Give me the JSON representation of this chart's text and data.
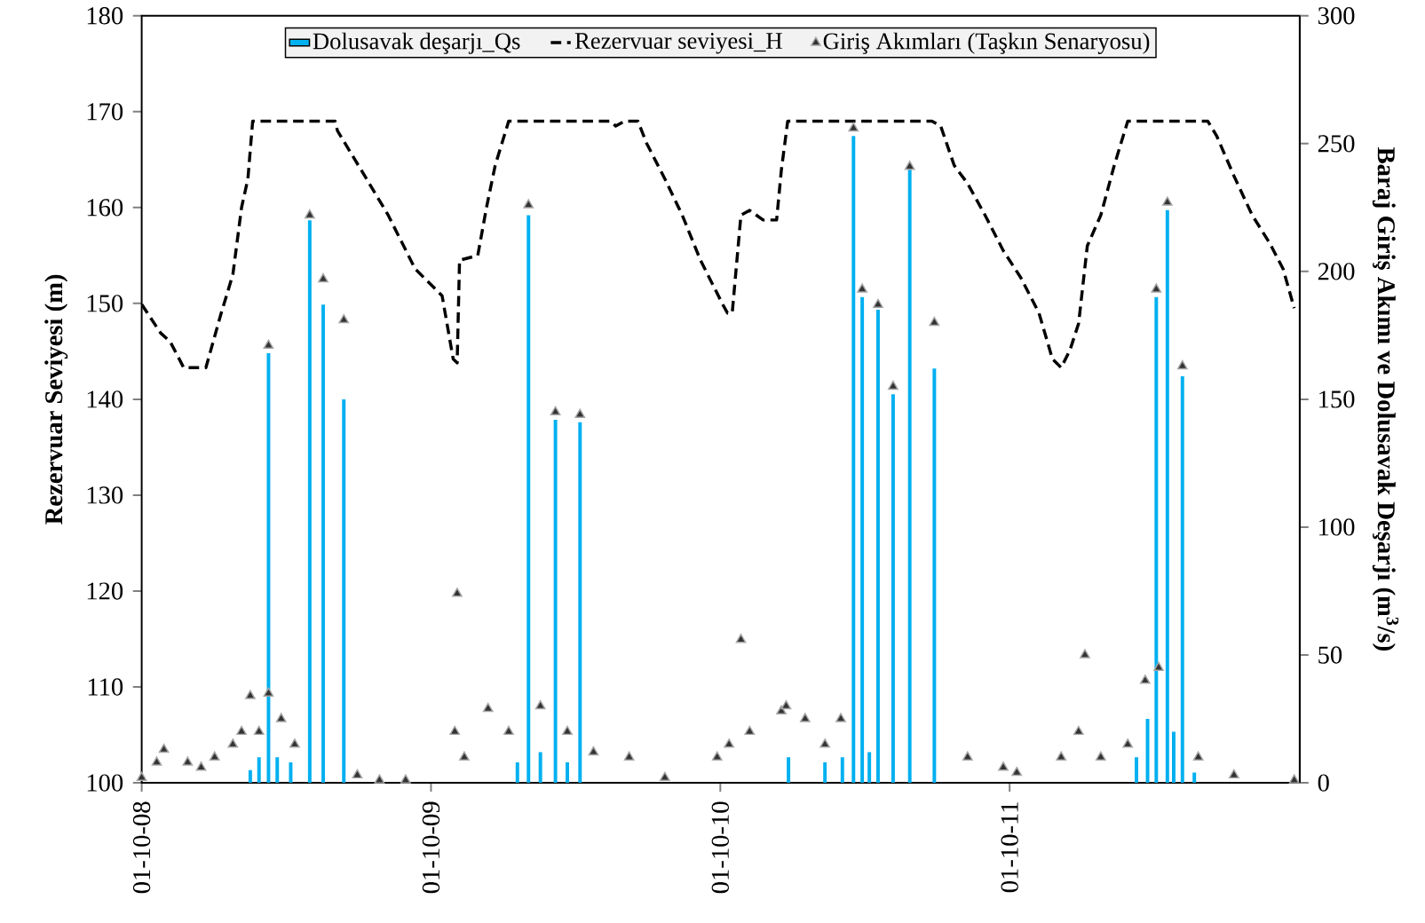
{
  "chart_data": {
    "type": "line",
    "ylabel": "Rezervuar Seviyesi (m)",
    "y2label": "Baraj Giriş Akımı ve Dolusavak Deşarjı (m$^{3}$/s)",
    "xlim": [
      "2008-10-01",
      "2012-10-01"
    ],
    "xticks": [
      {
        "value": "2008-10-01",
        "label": "01-10-08"
      },
      {
        "value": "2009-10-01",
        "label": "01-10-09"
      },
      {
        "value": "2010-10-01",
        "label": "01-10-10"
      },
      {
        "value": "2011-10-01",
        "label": "01-10-11"
      }
    ],
    "ylim": [
      100,
      180
    ],
    "yticks": [
      100,
      110,
      120,
      130,
      140,
      150,
      160,
      170,
      180
    ],
    "y2lim": [
      0,
      300
    ],
    "y2ticks": [
      0,
      50,
      100,
      150,
      200,
      250,
      300
    ],
    "grid": false,
    "legend": "top",
    "series": [
      {
        "name": "Dolusavak deşarjı_Qs",
        "type": "bar",
        "axis": "y2",
        "color": "#00b0f0",
        "x": [
          "2009-02-15",
          "2009-02-26",
          "2009-03-10",
          "2009-03-21",
          "2009-04-07",
          "2009-05-01",
          "2009-05-18",
          "2009-06-13",
          "2010-01-18",
          "2010-02-01",
          "2010-02-16",
          "2010-03-07",
          "2010-03-22",
          "2010-04-07",
          "2010-12-26",
          "2011-02-10",
          "2011-03-04",
          "2011-03-18",
          "2011-03-29",
          "2011-04-07",
          "2011-04-18",
          "2011-05-07",
          "2011-05-28",
          "2011-06-28",
          "2012-03-09",
          "2012-03-23",
          "2012-04-03",
          "2012-04-17",
          "2012-04-25",
          "2012-05-06",
          "2012-05-21"
        ],
        "values": [
          5,
          10,
          168,
          10,
          8,
          220,
          187,
          150,
          8,
          222,
          12,
          142,
          8,
          141,
          10,
          8,
          10,
          253,
          190,
          12,
          185,
          152,
          240,
          162,
          10,
          25,
          190,
          224,
          20,
          159,
          4
        ]
      },
      {
        "name": "Rezervuar seviyesi_H",
        "axis": "y",
        "color": "#000000",
        "line_style": "dashed",
        "x": [
          "2008-10-01",
          "2008-10-25",
          "2008-11-06",
          "2008-11-23",
          "2008-12-21",
          "2009-01-09",
          "2009-01-24",
          "2009-02-04",
          "2009-02-12",
          "2009-02-18",
          "2009-06-02",
          "2009-06-05",
          "2009-07-05",
          "2009-08-08",
          "2009-09-11",
          "2009-10-15",
          "2009-10-29",
          "2009-11-03",
          "2009-11-06",
          "2009-11-29",
          "2009-12-10",
          "2009-12-21",
          "2010-01-07",
          "2010-05-16",
          "2010-05-22",
          "2010-06-02",
          "2010-06-19",
          "2010-06-30",
          "2010-07-23",
          "2010-08-14",
          "2010-09-06",
          "2010-10-04",
          "2010-10-10",
          "2010-10-16",
          "2010-10-27",
          "2010-11-07",
          "2010-11-24",
          "2010-12-11",
          "2010-12-17",
          "2010-12-25",
          "2011-06-25",
          "2011-07-06",
          "2011-07-23",
          "2011-08-09",
          "2011-08-31",
          "2011-09-23",
          "2011-10-15",
          "2011-11-07",
          "2011-11-24",
          "2011-12-05",
          "2011-12-16",
          "2011-12-27",
          "2012-01-07",
          "2012-01-24",
          "2012-02-10",
          "2012-02-27",
          "2012-06-07",
          "2012-06-18",
          "2012-07-10",
          "2012-08-02",
          "2012-08-24",
          "2012-09-10",
          "2012-09-24"
        ],
        "values": [
          149.9,
          146.9,
          146,
          143.3,
          143.3,
          148.9,
          153,
          160,
          163,
          169,
          169,
          168,
          163.9,
          159.2,
          153.6,
          150.8,
          144.2,
          143.8,
          154.5,
          155,
          160,
          164.4,
          169,
          169,
          168.5,
          169,
          169,
          166.7,
          163,
          159.2,
          154.5,
          149.9,
          149,
          149,
          159.2,
          159.7,
          158.7,
          158.7,
          163.9,
          169,
          169,
          168.5,
          164.4,
          162.5,
          159.2,
          155.5,
          152.7,
          149,
          144.2,
          143.3,
          145.1,
          147.9,
          156,
          159.2,
          164.4,
          169,
          169,
          167.5,
          163.3,
          159.2,
          156.3,
          153.6,
          149.5
        ]
      },
      {
        "name": "Giriş Akımları (Taşkın Senaryosu)",
        "type": "scatter",
        "axis": "y2",
        "color": "#333333",
        "marker": "triangle",
        "x": [
          "2008-10-01",
          "2008-10-20",
          "2008-10-29",
          "2008-11-28",
          "2008-12-15",
          "2009-01-01",
          "2009-01-24",
          "2009-02-04",
          "2009-02-15",
          "2009-02-26",
          "2009-03-10",
          "2009-03-10",
          "2009-03-26",
          "2009-04-12",
          "2009-05-01",
          "2009-05-18",
          "2009-06-13",
          "2009-06-30",
          "2009-07-28",
          "2009-08-30",
          "2009-10-31",
          "2009-11-03",
          "2009-11-12",
          "2009-12-12",
          "2010-01-07",
          "2010-02-01",
          "2010-02-16",
          "2010-03-07",
          "2010-03-22",
          "2010-04-07",
          "2010-04-24",
          "2010-06-08",
          "2010-07-23",
          "2010-09-27",
          "2010-10-12",
          "2010-10-27",
          "2010-11-07",
          "2010-12-17",
          "2010-12-23",
          "2011-01-16",
          "2011-02-10",
          "2011-03-02",
          "2011-03-18",
          "2011-03-29",
          "2011-04-18",
          "2011-05-07",
          "2011-05-28",
          "2011-06-28",
          "2011-08-09",
          "2011-09-23",
          "2011-10-10",
          "2011-12-05",
          "2011-12-27",
          "2012-01-04",
          "2012-01-24",
          "2012-02-27",
          "2012-03-20",
          "2012-04-03",
          "2012-04-06",
          "2012-04-17",
          "2012-05-06",
          "2012-05-26",
          "2012-07-10",
          "2012-09-24"
        ],
        "values": [
          2,
          8,
          13,
          8,
          6,
          10,
          15,
          20,
          34,
          20,
          171,
          35,
          25,
          15,
          222,
          197,
          181,
          3,
          1,
          1,
          20,
          74,
          10,
          29,
          20,
          226,
          30,
          145,
          20,
          144,
          12,
          10,
          2,
          10,
          15,
          56,
          20,
          28,
          30,
          25,
          15,
          25,
          256,
          193,
          187,
          155,
          241,
          180,
          10,
          6,
          4,
          10,
          20,
          50,
          10,
          15,
          40,
          193,
          45,
          227,
          163,
          10,
          3,
          1
        ]
      }
    ]
  }
}
